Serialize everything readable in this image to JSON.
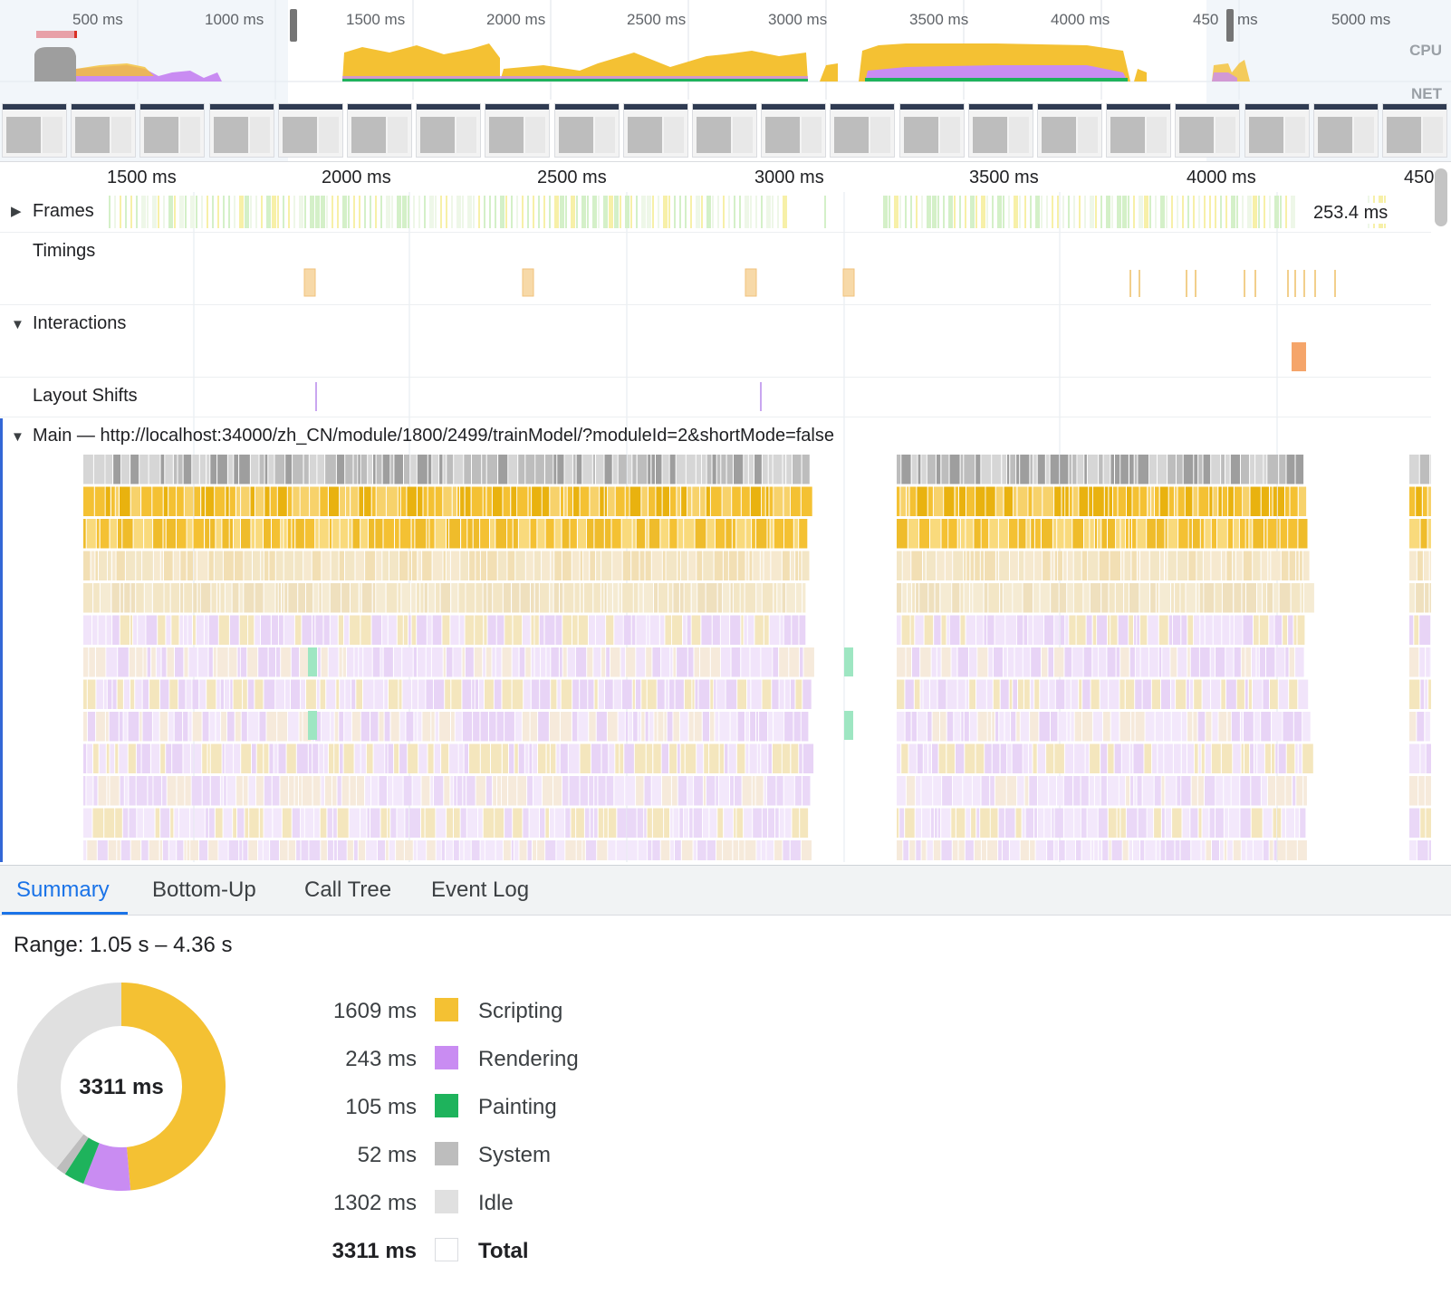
{
  "overview": {
    "ticks": [
      "500 ms",
      "1000 ms",
      "1500 ms",
      "2000 ms",
      "2500 ms",
      "3000 ms",
      "3500 ms",
      "4000 ms",
      "450",
      "ms",
      "5000 ms"
    ],
    "cpu_label": "CPU",
    "net_label": "NET"
  },
  "main_ruler": {
    "ticks": [
      "1500 ms",
      "2000 ms",
      "2500 ms",
      "3000 ms",
      "3500 ms",
      "4000 ms",
      "450"
    ]
  },
  "tracks": {
    "frames": {
      "label": "Frames",
      "duration": "253.4 ms"
    },
    "timings": {
      "label": "Timings"
    },
    "interactions": {
      "label": "Interactions"
    },
    "layout_shifts": {
      "label": "Layout Shifts"
    },
    "main": {
      "label": "Main — http://localhost:34000/zh_CN/module/1800/2499/trainModel/?moduleId=2&shortMode=false"
    }
  },
  "tabs": [
    {
      "label": "Summary",
      "active": true
    },
    {
      "label": "Bottom-Up",
      "active": false
    },
    {
      "label": "Call Tree",
      "active": false
    },
    {
      "label": "Event Log",
      "active": false
    }
  ],
  "summary": {
    "range": "Range: 1.05 s – 4.36 s",
    "total_center": "3311 ms",
    "rows": [
      {
        "value": "1609 ms",
        "name": "Scripting",
        "color": "#f4c133"
      },
      {
        "value": "243 ms",
        "name": "Rendering",
        "color": "#c98cf2"
      },
      {
        "value": "105 ms",
        "name": "Painting",
        "color": "#1eb35c"
      },
      {
        "value": "52 ms",
        "name": "System",
        "color": "#bdbdbd"
      },
      {
        "value": "1302 ms",
        "name": "Idle",
        "color": "#e0e0e0"
      },
      {
        "value": "3311 ms",
        "name": "Total",
        "color": "#ffffff"
      }
    ]
  },
  "chart_data": {
    "type": "pie",
    "title": "3311 ms",
    "categories": [
      "Scripting",
      "Rendering",
      "Painting",
      "System",
      "Idle"
    ],
    "values": [
      1609,
      243,
      105,
      52,
      1302
    ],
    "colors": [
      "#f4c133",
      "#c98cf2",
      "#1eb35c",
      "#bdbdbd",
      "#e0e0e0"
    ]
  }
}
